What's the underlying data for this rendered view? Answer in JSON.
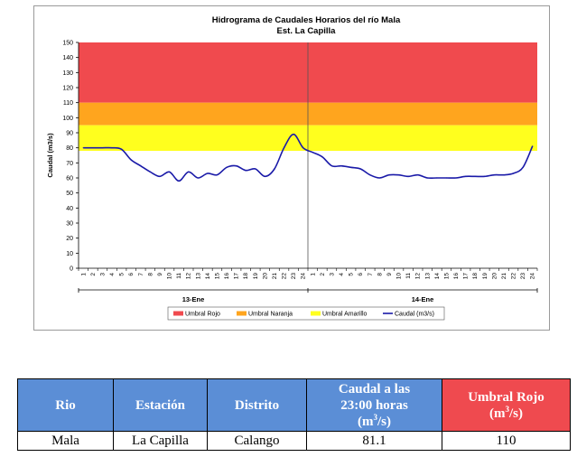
{
  "chart_data": {
    "type": "line",
    "title": "Hidrograma de Caudales Horarios del río Mala",
    "subtitle": "Est. La Capilla",
    "ylabel": "Caudal  (m3/s)",
    "xlabel": "",
    "ylim": [
      0,
      150
    ],
    "yticks": [
      0,
      10,
      20,
      30,
      40,
      50,
      60,
      70,
      80,
      90,
      100,
      110,
      120,
      130,
      140,
      150
    ],
    "x_tick_labels": [
      "1",
      "2",
      "3",
      "4",
      "5",
      "6",
      "7",
      "8",
      "9",
      "10",
      "11",
      "12",
      "13",
      "14",
      "15",
      "16",
      "17",
      "18",
      "19",
      "20",
      "21",
      "22",
      "23",
      "24",
      "1",
      "2",
      "3",
      "4",
      "5",
      "6",
      "7",
      "8",
      "9",
      "10",
      "11",
      "12",
      "13",
      "14",
      "15",
      "16",
      "17",
      "18",
      "19",
      "20",
      "21",
      "22",
      "23",
      "24"
    ],
    "day_labels": [
      "13-Ene",
      "14-Ene"
    ],
    "thresholds": [
      {
        "name": "Umbral Rojo",
        "from": 110,
        "to": 150,
        "color": "#f04a4e"
      },
      {
        "name": "Umbral Naranja",
        "from": 95,
        "to": 110,
        "color": "#ffa51e"
      },
      {
        "name": "Umbral Amarillo",
        "from": 78,
        "to": 95,
        "color": "#ffff1e"
      }
    ],
    "series": [
      {
        "name": "Caudal (m3/s)",
        "color": "#1a1aa8",
        "values": [
          80,
          80,
          80,
          80,
          79,
          72,
          68,
          64,
          61,
          64,
          58,
          64,
          60,
          63,
          62,
          67,
          68,
          65,
          66,
          61,
          66,
          80,
          89,
          80,
          77,
          74,
          68,
          68,
          67,
          66,
          62,
          60,
          62,
          62,
          61,
          62,
          60,
          60,
          60,
          60,
          61,
          61,
          61,
          62,
          62,
          63,
          67,
          81.1
        ]
      }
    ],
    "legend_position": "bottom",
    "grid": false
  },
  "table": {
    "headers": {
      "rio": "Rio",
      "estacion": "Estación",
      "distrito": "Distrito",
      "caudal_line1": "Caudal a las",
      "caudal_line2": "23:00 horas",
      "caudal_unit_base": "(m",
      "caudal_unit_sup": "3",
      "caudal_unit_end": "/s)",
      "umbral_line1": "Umbral Rojo",
      "umbral_unit_base": "(m",
      "umbral_unit_sup": "3",
      "umbral_unit_end": "/s)"
    },
    "row": {
      "rio": "Mala",
      "estacion": "La Capilla",
      "distrito": "Calango",
      "caudal": "81.1",
      "umbral": "110"
    },
    "header_color": "#5b8ed6",
    "umbral_header_color": "#ef4a4f"
  }
}
